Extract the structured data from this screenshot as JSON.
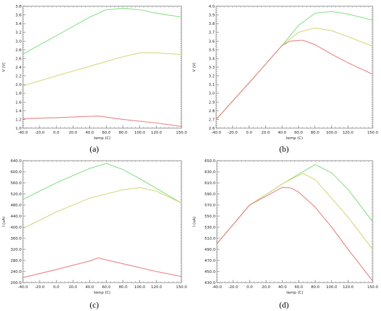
{
  "chart_data": [
    {
      "type": "line",
      "caption": "(a)",
      "xlabel": "temp (C)",
      "ylabel": "V (V)",
      "xlim": [
        -40,
        150
      ],
      "ylim": [
        1.0,
        3.8
      ],
      "xticks": [
        "-40.0",
        "-20.0",
        "0.0",
        "20.0",
        "40.0",
        "60.0",
        "80.0",
        "100.0",
        "120.0",
        "150.0"
      ],
      "yticks": [
        "1.0",
        "1.2",
        "1.4",
        "1.6",
        "1.8",
        "2.0",
        "2.2",
        "2.4",
        "2.6",
        "2.8",
        "3.0",
        "3.2",
        "3.4",
        "3.6",
        "3.8"
      ],
      "grid": false,
      "series": [
        {
          "color": "#86e086",
          "x": [
            -40,
            0,
            40,
            60,
            80,
            100,
            120,
            150
          ],
          "y": [
            2.7,
            3.12,
            3.55,
            3.72,
            3.75,
            3.72,
            3.64,
            3.55
          ]
        },
        {
          "color": "#d6d67a",
          "x": [
            -40,
            0,
            40,
            80,
            100,
            120,
            150
          ],
          "y": [
            1.97,
            2.2,
            2.42,
            2.64,
            2.73,
            2.73,
            2.69
          ]
        },
        {
          "color": "#e88080",
          "x": [
            -40,
            0,
            40,
            50,
            80,
            120,
            150
          ],
          "y": [
            1.22,
            1.24,
            1.27,
            1.28,
            1.2,
            1.12,
            1.04
          ]
        }
      ]
    },
    {
      "type": "line",
      "caption": "(b)",
      "xlabel": "temp (C)",
      "ylabel": "V (V)",
      "xlim": [
        -40,
        150
      ],
      "ylim": [
        2.6,
        4.0
      ],
      "xticks": [
        "-40.0",
        "-20.0",
        "0.0",
        "20.0",
        "40.0",
        "60.0",
        "80.0",
        "100.0",
        "120.0",
        "150.0"
      ],
      "yticks": [
        "2.6",
        "2.7",
        "2.8",
        "2.9",
        "3.0",
        "3.1",
        "3.2",
        "3.3",
        "3.4",
        "3.5",
        "3.6",
        "3.7",
        "3.8",
        "3.9",
        "4.0"
      ],
      "grid": false,
      "series": [
        {
          "color": "#86e086",
          "x": [
            -40,
            0,
            40,
            60,
            80,
            100,
            120,
            150
          ],
          "y": [
            2.7,
            3.12,
            3.55,
            3.78,
            3.92,
            3.94,
            3.91,
            3.84
          ]
        },
        {
          "color": "#d6d67a",
          "x": [
            -40,
            0,
            40,
            60,
            80,
            100,
            120,
            150
          ],
          "y": [
            2.7,
            3.12,
            3.55,
            3.7,
            3.75,
            3.72,
            3.65,
            3.54
          ]
        },
        {
          "color": "#e88080",
          "x": [
            -40,
            0,
            40,
            50,
            65,
            80,
            100,
            120,
            150
          ],
          "y": [
            2.7,
            3.12,
            3.55,
            3.6,
            3.61,
            3.56,
            3.45,
            3.35,
            3.22
          ]
        }
      ]
    },
    {
      "type": "line",
      "caption": "(c)",
      "xlabel": "temp (C)",
      "ylabel": "I (uA)",
      "xlim": [
        -40,
        150
      ],
      "ylim": [
        200,
        640
      ],
      "xticks": [
        "-40.0",
        "-20.0",
        "0.0",
        "20.0",
        "40.0",
        "60.0",
        "80.0",
        "100.0",
        "120.0",
        "150.0"
      ],
      "yticks": [
        "200.0",
        "240.0",
        "280.0",
        "320.0",
        "360.0",
        "400.0",
        "440.0",
        "480.0",
        "520.0",
        "560.0",
        "600.0",
        "640.0"
      ],
      "grid": false,
      "series": [
        {
          "color": "#86e086",
          "x": [
            -40,
            0,
            40,
            60,
            80,
            100,
            120,
            150
          ],
          "y": [
            500,
            560,
            612,
            630,
            608,
            575,
            540,
            487
          ]
        },
        {
          "color": "#d6d67a",
          "x": [
            -40,
            0,
            40,
            80,
            100,
            120,
            150
          ],
          "y": [
            395,
            455,
            505,
            535,
            543,
            530,
            487
          ]
        },
        {
          "color": "#e88080",
          "x": [
            -40,
            0,
            40,
            50,
            80,
            120,
            150
          ],
          "y": [
            218,
            247,
            278,
            289,
            268,
            240,
            222
          ]
        }
      ]
    },
    {
      "type": "line",
      "caption": "(d)",
      "xlabel": "temp (C)",
      "ylabel": "I (uA)",
      "xlim": [
        -40,
        150
      ],
      "ylim": [
        430,
        650
      ],
      "xticks": [
        "-40.0",
        "-20.0",
        "0.0",
        "20.0",
        "40.0",
        "60.0",
        "80.0",
        "100.0",
        "120.0",
        "150.0"
      ],
      "yticks": [
        "430.0",
        "450.0",
        "470.0",
        "490.0",
        "510.0",
        "530.0",
        "550.0",
        "570.0",
        "590.0",
        "610.0",
        "630.0",
        "650.0"
      ],
      "grid": false,
      "series": [
        {
          "color": "#86e086",
          "x": [
            -40,
            0,
            40,
            60,
            80,
            100,
            120,
            150
          ],
          "y": [
            500,
            570,
            608,
            626,
            643,
            628,
            598,
            540
          ]
        },
        {
          "color": "#d6d67a",
          "x": [
            -40,
            0,
            40,
            55,
            65,
            80,
            100,
            120,
            150
          ],
          "y": [
            500,
            570,
            608,
            620,
            627,
            616,
            582,
            548,
            490
          ]
        },
        {
          "color": "#e88080",
          "x": [
            -40,
            0,
            40,
            50,
            60,
            80,
            100,
            120,
            150
          ],
          "y": [
            500,
            570,
            602,
            601,
            593,
            566,
            530,
            490,
            433
          ]
        }
      ]
    }
  ]
}
